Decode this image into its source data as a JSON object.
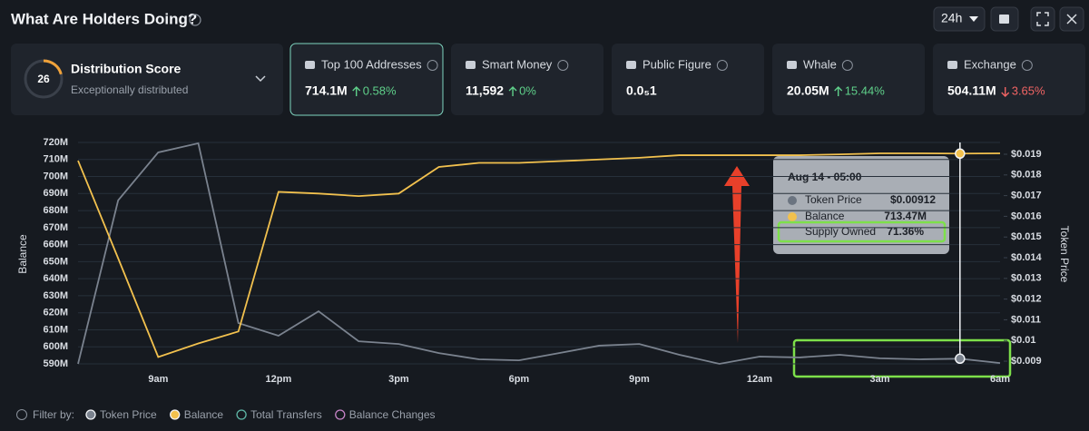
{
  "header": {
    "title": "What Are Holders Doing?",
    "range": "24h"
  },
  "score": {
    "value": "26",
    "title": "Distribution Score",
    "subtitle": "Exceptionally distributed"
  },
  "cards": [
    {
      "name": "Top 100 Addresses",
      "value": "714.1M",
      "change": "0.58%",
      "direction": "up",
      "selected": true
    },
    {
      "name": "Smart Money",
      "value": "11,592",
      "change": "0%",
      "direction": "up"
    },
    {
      "name": "Public Figure",
      "value": "0.0₅1"
    },
    {
      "name": "Whale",
      "value": "20.05M",
      "change": "15.44%",
      "direction": "up"
    },
    {
      "name": "Exchange",
      "value": "504.11M",
      "change": "3.65%",
      "direction": "down"
    }
  ],
  "tooltip": {
    "title": "Aug 14 - 05:00",
    "rows": [
      {
        "label": "Token Price",
        "value": "$0.00912"
      },
      {
        "label": "Balance",
        "value": "713.47M"
      },
      {
        "label": "Supply Owned",
        "value": "71.36%"
      }
    ]
  },
  "filters": {
    "label": "Filter by:",
    "extra": [
      "Total Transfers",
      "Balance Changes"
    ]
  },
  "chart_data": {
    "type": "line",
    "y_label": "Balance",
    "y2_label": "Token Price",
    "categories": [
      null,
      null,
      "9am",
      null,
      null,
      "12pm",
      null,
      null,
      "3pm",
      null,
      null,
      "6pm",
      null,
      null,
      "9pm",
      null,
      null,
      "12am",
      null,
      null,
      "3am",
      null,
      null,
      "6am"
    ],
    "series": [
      {
        "name": "Token Price",
        "color": "#7a828e",
        "axis": "y2",
        "values": [
          0.00887,
          0.01677,
          0.01909,
          0.01953,
          0.01084,
          0.01023,
          0.01141,
          0.00996,
          0.00983,
          0.00939,
          0.00909,
          0.00904,
          0.00939,
          0.00975,
          0.00983,
          0.00931,
          0.00887,
          0.00922,
          0.00918,
          0.00931,
          0.00914,
          0.00909,
          0.00912,
          0.00891
        ]
      },
      {
        "name": "Balance",
        "color": "#f2c14e",
        "values": [
          709.3,
          652,
          594,
          602,
          609,
          691,
          690,
          688.5,
          690,
          705.6,
          708,
          708,
          709,
          710,
          711,
          712.5,
          712.5,
          712.5,
          712.5,
          713,
          713.6,
          713.6,
          713.47,
          713.6
        ]
      }
    ],
    "ylim": [
      590,
      720
    ],
    "yticks": [
      {
        "value": 590,
        "label": "590M"
      },
      {
        "value": 600,
        "label": "600M"
      },
      {
        "value": 610,
        "label": "610M"
      },
      {
        "value": 620,
        "label": "620M"
      },
      {
        "value": 630,
        "label": "630M"
      },
      {
        "value": 640,
        "label": "640M"
      },
      {
        "value": 650,
        "label": "650M"
      },
      {
        "value": 660,
        "label": "660M"
      },
      {
        "value": 670,
        "label": "670M"
      },
      {
        "value": 680,
        "label": "680M"
      },
      {
        "value": 690,
        "label": "690M"
      },
      {
        "value": 700,
        "label": "700M"
      },
      {
        "value": 710,
        "label": "710M"
      },
      {
        "value": 720,
        "label": "720M"
      }
    ],
    "y2lim": [
      0.00887,
      0.01957
    ],
    "y2ticks": [
      {
        "value": 0.009,
        "label": "$0.009"
      },
      {
        "value": 0.01,
        "label": "$0.01"
      },
      {
        "value": 0.011,
        "label": "$0.011"
      },
      {
        "value": 0.012,
        "label": "$0.012"
      },
      {
        "value": 0.013,
        "label": "$0.013"
      },
      {
        "value": 0.014,
        "label": "$0.014"
      },
      {
        "value": 0.015,
        "label": "$0.015"
      },
      {
        "value": 0.016,
        "label": "$0.016"
      },
      {
        "value": 0.017,
        "label": "$0.017"
      },
      {
        "value": 0.018,
        "label": "$0.018"
      },
      {
        "value": 0.019,
        "label": "$0.019"
      }
    ],
    "grid": true,
    "highlight_index": 22
  }
}
